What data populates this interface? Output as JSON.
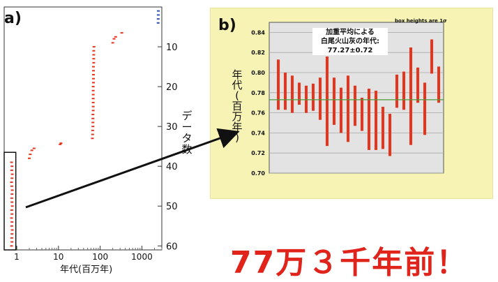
{
  "panel_a": {
    "label": "a)"
  },
  "panel_b": {
    "label": "b)",
    "note": "box heights are 1σ"
  },
  "headline": "77万３千年前！",
  "chart_data": [
    {
      "type": "scatter",
      "title": "",
      "xlabel": "年代(百万年)",
      "ylabel": "データ数",
      "x_scale": "log",
      "xlim": [
        0.5,
        3000
      ],
      "ylim": [
        0,
        61
      ],
      "y_inverted": true,
      "y_axis_side": "right",
      "x_ticks": [
        1,
        10,
        100,
        1000
      ],
      "x_tick_labels": [
        "1",
        "10",
        "100",
        "1000"
      ],
      "y_ticks": [
        10,
        20,
        30,
        40,
        50,
        60
      ],
      "y_tick_labels": [
        "10",
        "20",
        "30",
        "40",
        "50",
        "60"
      ],
      "highlight_box": {
        "x_range": [
          0.5,
          0.95
        ],
        "y_range": [
          36.5,
          61
        ]
      },
      "series": [
        {
          "color": "#e8341c",
          "points": [
            [
              0.75,
              39
            ],
            [
              0.77,
              40
            ],
            [
              0.76,
              41
            ],
            [
              0.78,
              42
            ],
            [
              0.77,
              43
            ],
            [
              0.75,
              44
            ],
            [
              0.76,
              45
            ],
            [
              0.78,
              46
            ],
            [
              0.77,
              47
            ],
            [
              0.76,
              48
            ],
            [
              0.77,
              49
            ],
            [
              0.78,
              50
            ],
            [
              0.76,
              51
            ],
            [
              0.77,
              52
            ],
            [
              0.75,
              53
            ],
            [
              0.77,
              54
            ],
            [
              0.76,
              55
            ],
            [
              0.78,
              56
            ],
            [
              0.77,
              57
            ],
            [
              0.76,
              58
            ],
            [
              0.77,
              59
            ],
            [
              0.75,
              60
            ],
            [
              2.0,
              38
            ],
            [
              2.1,
              37
            ],
            [
              2.3,
              36
            ],
            [
              2.6,
              35.5
            ],
            [
              11,
              34.5
            ],
            [
              11.5,
              34.2
            ],
            [
              65,
              33
            ],
            [
              66,
              32
            ],
            [
              66,
              31
            ],
            [
              67,
              30
            ],
            [
              67,
              29
            ],
            [
              67,
              28
            ],
            [
              67,
              27
            ],
            [
              68,
              26
            ],
            [
              68,
              25
            ],
            [
              68,
              24
            ],
            [
              68,
              23
            ],
            [
              68,
              22
            ],
            [
              68,
              21
            ],
            [
              68,
              20
            ],
            [
              69,
              19
            ],
            [
              69,
              18
            ],
            [
              69,
              17
            ],
            [
              69,
              16
            ],
            [
              69,
              15
            ],
            [
              70,
              14
            ],
            [
              70,
              13
            ],
            [
              70,
              12
            ],
            [
              70,
              11
            ],
            [
              71,
              10
            ],
            [
              200,
              9
            ],
            [
              215,
              8
            ],
            [
              235,
              7.5
            ],
            [
              330,
              6.5
            ]
          ]
        },
        {
          "color": "#2a52c8",
          "points": [
            [
              2450,
              4
            ],
            [
              2460,
              3
            ],
            [
              2470,
              2
            ],
            [
              2480,
              1
            ]
          ]
        }
      ]
    },
    {
      "type": "range_bar",
      "title": "加重平均による\n白尾火山灰の年代:\n77.27±0.72",
      "xlabel": "",
      "ylabel": "年代(百万年)",
      "ylim": [
        0.7,
        0.85
      ],
      "y_ticks": [
        0.7,
        0.72,
        0.74,
        0.76,
        0.78,
        0.8,
        0.82,
        0.84
      ],
      "y_tick_labels": [
        "0.70",
        "0.72",
        "0.74",
        "0.76",
        "0.78",
        "0.80",
        "0.82",
        "0.84"
      ],
      "grid": true,
      "mean_line": 0.773,
      "mean_line_color": "#4a9a3a",
      "bar_color": "#e8341c",
      "bars": [
        {
          "low": 0.763,
          "high": 0.813
        },
        {
          "low": 0.763,
          "high": 0.8
        },
        {
          "low": 0.76,
          "high": 0.797
        },
        {
          "low": 0.768,
          "high": 0.79
        },
        {
          "low": 0.76,
          "high": 0.787
        },
        {
          "low": 0.762,
          "high": 0.789
        },
        {
          "low": 0.753,
          "high": 0.795
        },
        {
          "low": 0.727,
          "high": 0.816
        },
        {
          "low": 0.748,
          "high": 0.795
        },
        {
          "low": 0.74,
          "high": 0.785
        },
        {
          "low": 0.731,
          "high": 0.797
        },
        {
          "low": 0.747,
          "high": 0.787
        },
        {
          "low": 0.742,
          "high": 0.775
        },
        {
          "low": 0.723,
          "high": 0.784
        },
        {
          "low": 0.723,
          "high": 0.782
        },
        {
          "low": 0.724,
          "high": 0.766
        },
        {
          "low": 0.717,
          "high": 0.759
        },
        {
          "low": 0.765,
          "high": 0.798
        },
        {
          "low": 0.763,
          "high": 0.801
        },
        {
          "low": 0.728,
          "high": 0.825
        },
        {
          "low": 0.77,
          "high": 0.805
        },
        {
          "low": 0.738,
          "high": 0.79
        },
        {
          "low": 0.799,
          "high": 0.833
        },
        {
          "low": 0.77,
          "high": 0.806
        }
      ]
    }
  ]
}
